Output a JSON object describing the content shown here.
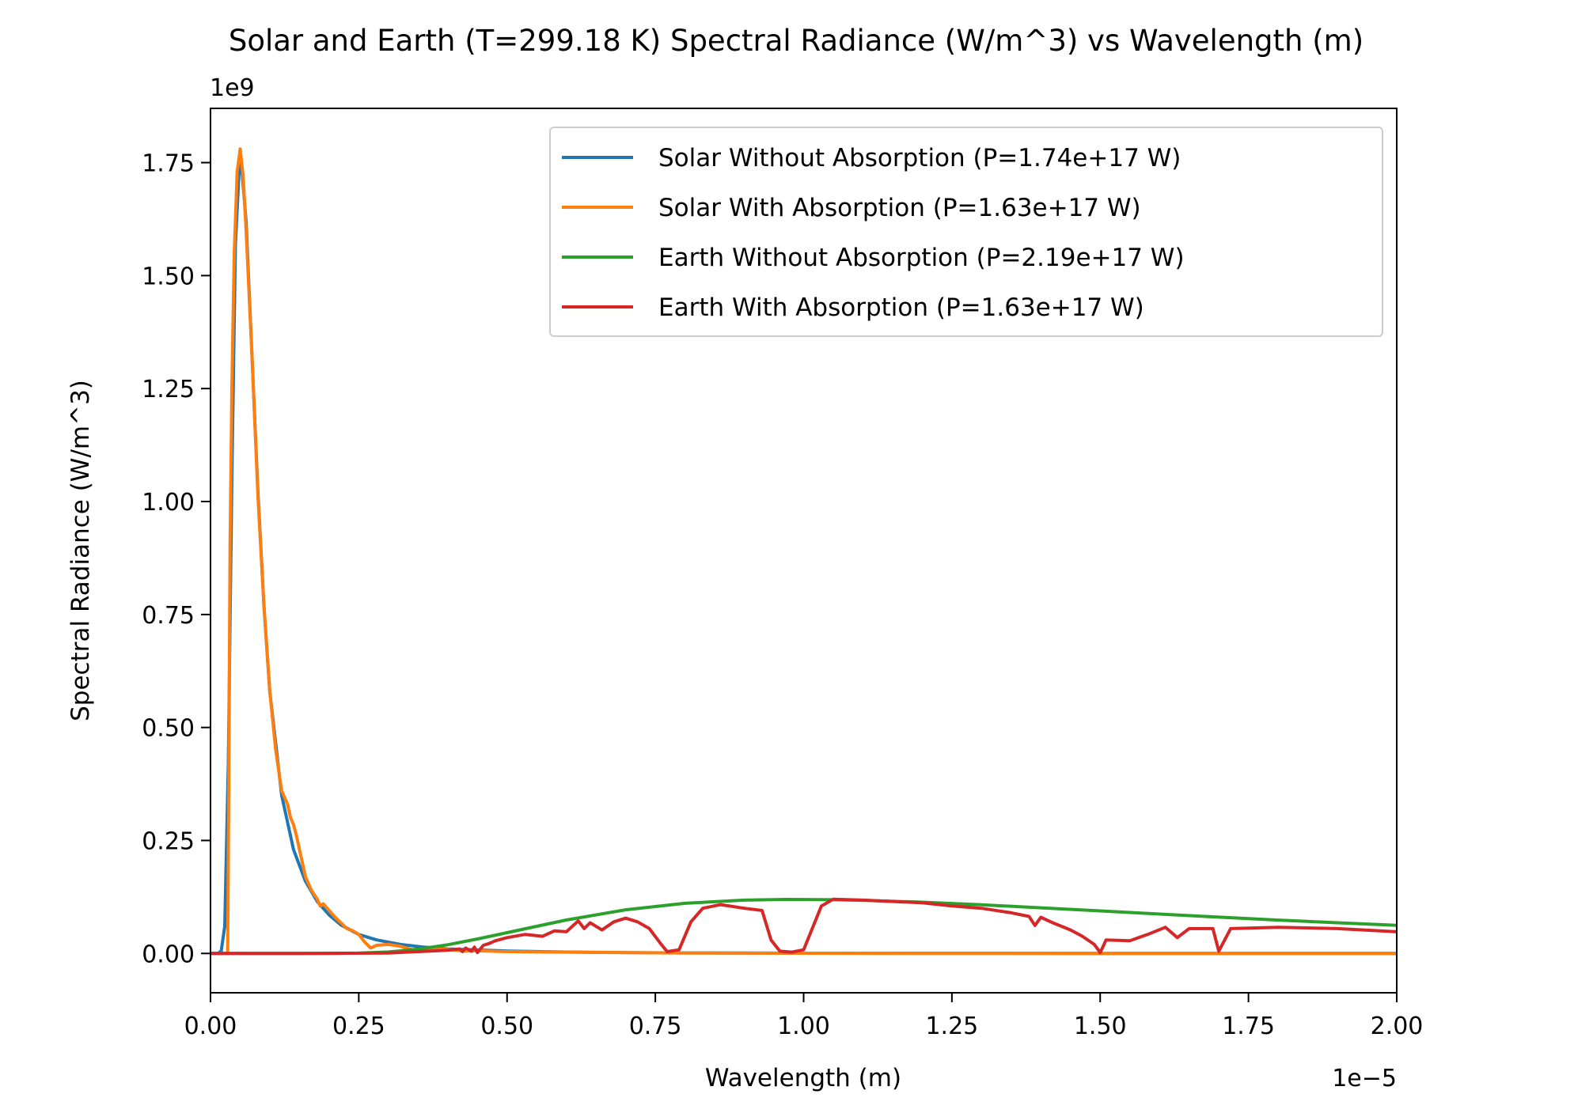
{
  "chart_data": {
    "type": "line",
    "title": "Solar and Earth (T=299.18 K) Spectral Radiance (W/m^3) vs Wavelength (m)",
    "xlabel": "Wavelength (m)",
    "ylabel": "Spectral Radiance (W/m^3)",
    "x_offset_text": "1e−5",
    "y_offset_text": "1e9",
    "x_scale": 1e-05,
    "y_scale": 1000000000.0,
    "xlim": [
      0,
      2e-05
    ],
    "ylim": [
      -87000000.0,
      1870000000.0
    ],
    "x_ticks": [
      0,
      2.5e-06,
      5e-06,
      7.5e-06,
      1e-05,
      1.25e-05,
      1.5e-05,
      1.75e-05,
      2e-05
    ],
    "x_tick_labels": [
      "0.00",
      "0.25",
      "0.50",
      "0.75",
      "1.00",
      "1.25",
      "1.50",
      "1.75",
      "2.00"
    ],
    "y_ticks": [
      0,
      250000000.0,
      500000000.0,
      750000000.0,
      1000000000.0,
      1250000000.0,
      1500000000.0,
      1750000000.0
    ],
    "y_tick_labels": [
      "0.00",
      "0.25",
      "0.50",
      "0.75",
      "1.00",
      "1.25",
      "1.50",
      "1.75"
    ],
    "grid": false,
    "legend_position": "top-right",
    "series": [
      {
        "name": "Solar Without Absorption (P=1.74e+17 W)",
        "color": "#1f77b4",
        "x": [
          0,
          1.2e-07,
          1.8e-07,
          2.4e-07,
          3e-07,
          3.6e-07,
          4.2e-07,
          5e-07,
          6e-07,
          7e-07,
          8e-07,
          9e-07,
          1e-06,
          1.2e-06,
          1.4e-06,
          1.6e-06,
          1.8e-06,
          2e-06,
          2.2e-06,
          2.5e-06,
          2.8e-06,
          3.2e-06,
          3.6e-06,
          4e-06,
          5e-06,
          6e-06,
          7e-06,
          8e-06,
          1e-05,
          1.2e-05,
          1.5e-05,
          2e-05
        ],
        "y": [
          0,
          0,
          5000000.0,
          60000000.0,
          420000000.0,
          1050000000.0,
          1570000000.0,
          1780000000.0,
          1620000000.0,
          1320000000.0,
          1020000000.0,
          770000000.0,
          580000000.0,
          350000000.0,
          230000000.0,
          160000000.0,
          115000000.0,
          85000000.0,
          63000000.0,
          42000000.0,
          30000000.0,
          20000000.0,
          14000000.0,
          10000000.0,
          5500000.0,
          3200000.0,
          2000000.0,
          1300000.0,
          600000.0,
          300000.0,
          150000.0,
          50000.0
        ]
      },
      {
        "name": "Solar With Absorption (P=1.63e+17 W)",
        "color": "#ff7f0e",
        "x": [
          0,
          2.9e-07,
          3e-07,
          3.3e-07,
          3.6e-07,
          4e-07,
          4.5e-07,
          5e-07,
          5.5e-07,
          6e-07,
          7e-07,
          8e-07,
          9e-07,
          1e-06,
          1.1e-06,
          1.2e-06,
          1.3e-06,
          1.35e-06,
          1.4e-06,
          1.45e-06,
          1.5e-06,
          1.6e-06,
          1.7e-06,
          1.8e-06,
          1.85e-06,
          1.9e-06,
          2e-06,
          2.1e-06,
          2.2e-06,
          2.3e-06,
          2.4e-06,
          2.5e-06,
          2.6e-06,
          2.7e-06,
          2.8e-06,
          3e-06,
          3.2e-06,
          3.4e-06,
          3.6e-06,
          4e-06,
          4.3e-06,
          4.5e-06,
          5e-06,
          6e-06,
          7e-06,
          8e-06,
          1e-05,
          1.2e-05,
          1.5e-05,
          2e-05
        ],
        "y": [
          0,
          0,
          200000000.0,
          900000000.0,
          1250000000.0,
          1550000000.0,
          1730000000.0,
          1780000000.0,
          1720000000.0,
          1600000000.0,
          1320000000.0,
          1010000000.0,
          770000000.0,
          580000000.0,
          450000000.0,
          360000000.0,
          330000000.0,
          300000000.0,
          285000000.0,
          260000000.0,
          230000000.0,
          170000000.0,
          140000000.0,
          120000000.0,
          105000000.0,
          110000000.0,
          95000000.0,
          80000000.0,
          68000000.0,
          55000000.0,
          50000000.0,
          42000000.0,
          25000000.0,
          12000000.0,
          18000000.0,
          20000000.0,
          16000000.0,
          8000000.0,
          11000000.0,
          9000000.0,
          5000000.0,
          6000000.0,
          4000000.0,
          3000000.0,
          2000000.0,
          1000000.0,
          500000.0,
          300000.0,
          100000.0,
          50000.0
        ]
      },
      {
        "name": "Earth Without Absorption (P=2.19e+17 W)",
        "color": "#2ca02c",
        "x": [
          0,
          1.5e-06,
          2e-06,
          2.5e-06,
          3e-06,
          3.5e-06,
          4e-06,
          4.5e-06,
          5e-06,
          6e-06,
          7e-06,
          8e-06,
          9e-06,
          9.7e-06,
          1.05e-05,
          1.1e-05,
          1.2e-05,
          1.3e-05,
          1.4e-05,
          1.5e-05,
          1.6e-05,
          1.7e-05,
          1.8e-05,
          1.9e-05,
          2e-05
        ],
        "y": [
          0,
          0,
          30000.0,
          700000.0,
          3400000.0,
          9500000.0,
          19300000.0,
          32000000.0,
          46100000.0,
          74100000.0,
          96600000.0,
          111000000.0,
          118000000.0,
          119500000.0,
          118900000.0,
          117700000.0,
          113400000.0,
          107600000.0,
          101000000.0,
          94100000.0,
          87100000.0,
          80300000.0,
          73900000.0,
          67900000.0,
          62300000.0
        ]
      },
      {
        "name": "Earth With Absorption (P=1.63e+17 W)",
        "color": "#d62728",
        "x": [
          0,
          1.5e-06,
          3e-06,
          3.5e-06,
          4e-06,
          4.2e-06,
          4.25e-06,
          4.3e-06,
          4.4e-06,
          4.45e-06,
          4.5e-06,
          4.6e-06,
          4.7e-06,
          4.8e-06,
          5e-06,
          5.3e-06,
          5.6e-06,
          5.8e-06,
          6e-06,
          6.2e-06,
          6.3e-06,
          6.4e-06,
          6.6e-06,
          6.8e-06,
          7e-06,
          7.2e-06,
          7.4e-06,
          7.6e-06,
          7.7e-06,
          7.9e-06,
          8.1e-06,
          8.3e-06,
          8.6e-06,
          9e-06,
          9.3e-06,
          9.45e-06,
          9.6e-06,
          9.8e-06,
          1e-05,
          1.03e-05,
          1.05e-05,
          1.1e-05,
          1.2e-05,
          1.25e-05,
          1.3e-05,
          1.35e-05,
          1.38e-05,
          1.39e-05,
          1.4e-05,
          1.42e-05,
          1.45e-05,
          1.47e-05,
          1.49e-05,
          1.5e-05,
          1.51e-05,
          1.55e-05,
          1.58e-05,
          1.61e-05,
          1.63e-05,
          1.65e-05,
          1.69e-05,
          1.7e-05,
          1.72e-05,
          1.8e-05,
          1.9e-05,
          2e-05
        ],
        "y": [
          0,
          0,
          1000000.0,
          4000000.0,
          7000000.0,
          10000000.0,
          4000000.0,
          12000000.0,
          5000000.0,
          14000000.0,
          2000000.0,
          18000000.0,
          22000000.0,
          28000000.0,
          35000000.0,
          42000000.0,
          38000000.0,
          50000000.0,
          48000000.0,
          72000000.0,
          55000000.0,
          68000000.0,
          52000000.0,
          70000000.0,
          78000000.0,
          70000000.0,
          55000000.0,
          20000000.0,
          4000000.0,
          8000000.0,
          70000000.0,
          100000000.0,
          108000000.0,
          100000000.0,
          95000000.0,
          30000000.0,
          5000000.0,
          3000000.0,
          8000000.0,
          105000000.0,
          120000000.0,
          118000000.0,
          112000000.0,
          105000000.0,
          100000000.0,
          90000000.0,
          82000000.0,
          62000000.0,
          80000000.0,
          68000000.0,
          52000000.0,
          38000000.0,
          20000000.0,
          2000000.0,
          30000000.0,
          28000000.0,
          42000000.0,
          58000000.0,
          35000000.0,
          55000000.0,
          55000000.0,
          5000000.0,
          55000000.0,
          58000000.0,
          55000000.0,
          48000000.0
        ]
      }
    ]
  }
}
